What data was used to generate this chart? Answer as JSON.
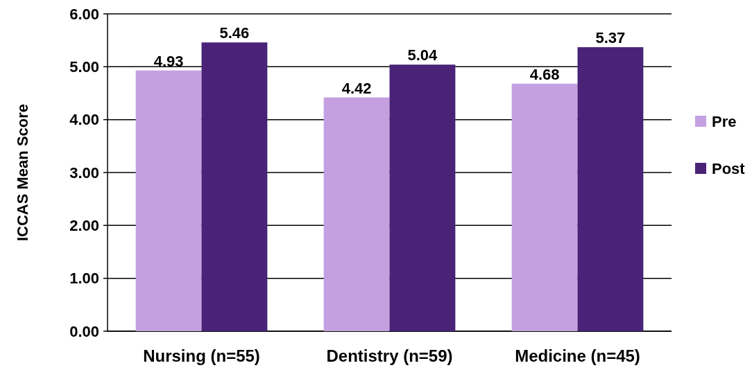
{
  "chart_data": {
    "type": "bar",
    "ylabel": "ICCAS Mean Score",
    "categories": [
      "Nursing (n=55)",
      "Dentistry (n=59)",
      "Medicine (n=45)"
    ],
    "series": [
      {
        "name": "Pre",
        "color": "#c5a0e0",
        "values": [
          4.93,
          4.42,
          4.68
        ]
      },
      {
        "name": "Post",
        "color": "#4a2378",
        "values": [
          5.46,
          5.04,
          5.37
        ]
      }
    ],
    "ylim": [
      0,
      6
    ],
    "yticks": [
      {
        "value": 0,
        "label": "0.00"
      },
      {
        "value": 1,
        "label": "1.00"
      },
      {
        "value": 2,
        "label": "2.00"
      },
      {
        "value": 3,
        "label": "3.00"
      },
      {
        "value": 4,
        "label": "4.00"
      },
      {
        "value": 5,
        "label": "5.00"
      },
      {
        "value": 6,
        "label": "6.00"
      }
    ],
    "grid": "y",
    "legend": "right",
    "data_labels": true
  }
}
